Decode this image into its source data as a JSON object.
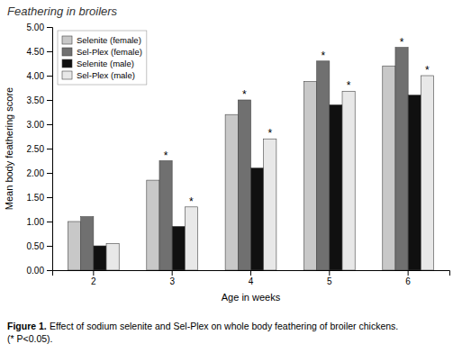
{
  "chart_data": {
    "type": "bar",
    "title": "Feathering in broilers",
    "x_label": "Age in weeks",
    "y_label": "Mean body feathering score",
    "caption": [
      "Figure 1.",
      "Effect of sodium selenite and Sel-Plex on whole body feathering of broiler chickens.",
      "(* P<0.05)."
    ],
    "categories": [
      "2",
      "3",
      "4",
      "5",
      "6"
    ],
    "series": [
      {
        "name": "Selenite (female)",
        "color": "#c8c8c8",
        "values": [
          1.0,
          1.85,
          3.2,
          3.88,
          4.2
        ]
      },
      {
        "name": "Sel-Plex (female)",
        "color": "#707070",
        "values": [
          1.1,
          2.25,
          3.5,
          4.3,
          4.58
        ]
      },
      {
        "name": "Selenite (male)",
        "color": "#101010",
        "values": [
          0.5,
          0.9,
          2.1,
          3.4,
          3.6
        ]
      },
      {
        "name": "Sel-Plex (male)",
        "color": "#e8e8e8",
        "values": [
          0.55,
          1.3,
          2.7,
          3.68,
          4.0
        ]
      }
    ],
    "annotations": [
      {
        "text": "*",
        "category": "3",
        "series": "Sel-Plex (female)"
      },
      {
        "text": "*",
        "category": "3",
        "series": "Sel-Plex (male)"
      },
      {
        "text": "*",
        "category": "4",
        "series": "Sel-Plex (female)"
      },
      {
        "text": "*",
        "category": "4",
        "series": "Sel-Plex (male)"
      },
      {
        "text": "*",
        "category": "5",
        "series": "Sel-Plex (female)"
      },
      {
        "text": "*",
        "category": "5",
        "series": "Sel-Plex (male)"
      },
      {
        "text": "*",
        "category": "6",
        "series": "Sel-Plex (female)"
      },
      {
        "text": "*",
        "category": "6",
        "series": "Sel-Plex (male)"
      }
    ],
    "ylim": [
      0.0,
      5.0
    ],
    "yticks": [
      {
        "value": 0.0,
        "label": "0.00"
      },
      {
        "value": 0.5,
        "label": "0.50"
      },
      {
        "value": 1.0,
        "label": "1.00"
      },
      {
        "value": 1.5,
        "label": "1.50"
      },
      {
        "value": 2.0,
        "label": "2.00"
      },
      {
        "value": 2.5,
        "label": "2.50"
      },
      {
        "value": 3.0,
        "label": "3.00"
      },
      {
        "value": 3.5,
        "label": "3.50"
      },
      {
        "value": 4.0,
        "label": "4.00"
      },
      {
        "value": 4.5,
        "label": "4.50"
      },
      {
        "value": 5.0,
        "label": "5.00"
      }
    ],
    "grid": false,
    "legend": "upper left"
  }
}
